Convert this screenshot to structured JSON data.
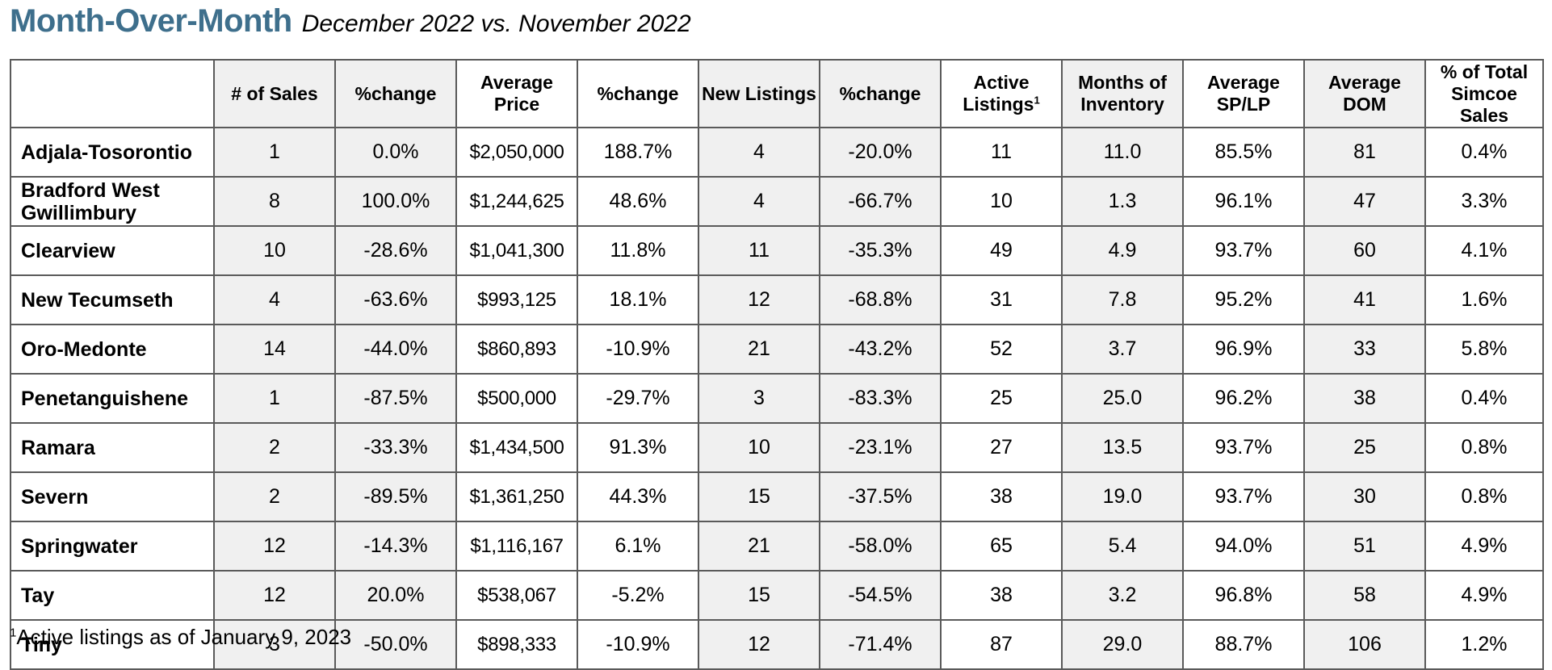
{
  "title": "Month-Over-Month",
  "subtitle": "December 2022 vs. November 2022",
  "colors": {
    "title": "#3e6f8c",
    "shaded_column": "#f0f0f0",
    "border": "#5a5a5a"
  },
  "table": {
    "headers": [
      "",
      "# of Sales",
      "%change",
      "Average Price",
      "%change",
      "New Listings",
      "%change",
      "Active Listings",
      "Months of Inventory",
      "Average SP/LP",
      "Average DOM",
      "% of Total Simcoe Sales"
    ],
    "active_listings_footnote_mark": "1",
    "rows": [
      [
        "Adjala-Tosorontio",
        "1",
        "0.0%",
        "$2,050,000",
        "188.7%",
        "4",
        "-20.0%",
        "11",
        "11.0",
        "85.5%",
        "81",
        "0.4%"
      ],
      [
        "Bradford West Gwillimbury",
        "8",
        "100.0%",
        "$1,244,625",
        "48.6%",
        "4",
        "-66.7%",
        "10",
        "1.3",
        "96.1%",
        "47",
        "3.3%"
      ],
      [
        "Clearview",
        "10",
        "-28.6%",
        "$1,041,300",
        "11.8%",
        "11",
        "-35.3%",
        "49",
        "4.9",
        "93.7%",
        "60",
        "4.1%"
      ],
      [
        "New Tecumseth",
        "4",
        "-63.6%",
        "$993,125",
        "18.1%",
        "12",
        "-68.8%",
        "31",
        "7.8",
        "95.2%",
        "41",
        "1.6%"
      ],
      [
        "Oro-Medonte",
        "14",
        "-44.0%",
        "$860,893",
        "-10.9%",
        "21",
        "-43.2%",
        "52",
        "3.7",
        "96.9%",
        "33",
        "5.8%"
      ],
      [
        "Penetanguishene",
        "1",
        "-87.5%",
        "$500,000",
        "-29.7%",
        "3",
        "-83.3%",
        "25",
        "25.0",
        "96.2%",
        "38",
        "0.4%"
      ],
      [
        "Ramara",
        "2",
        "-33.3%",
        "$1,434,500",
        "91.3%",
        "10",
        "-23.1%",
        "27",
        "13.5",
        "93.7%",
        "25",
        "0.8%"
      ],
      [
        "Severn",
        "2",
        "-89.5%",
        "$1,361,250",
        "44.3%",
        "15",
        "-37.5%",
        "38",
        "19.0",
        "93.7%",
        "30",
        "0.8%"
      ],
      [
        "Springwater",
        "12",
        "-14.3%",
        "$1,116,167",
        "6.1%",
        "21",
        "-58.0%",
        "65",
        "5.4",
        "94.0%",
        "51",
        "4.9%"
      ],
      [
        "Tay",
        "12",
        "20.0%",
        "$538,067",
        "-5.2%",
        "15",
        "-54.5%",
        "38",
        "3.2",
        "96.8%",
        "58",
        "4.9%"
      ],
      [
        "Tiny",
        "3",
        "-50.0%",
        "$898,333",
        "-10.9%",
        "12",
        "-71.4%",
        "87",
        "29.0",
        "88.7%",
        "106",
        "1.2%"
      ]
    ]
  },
  "footnote": {
    "mark": "1",
    "text": "Active listings as of January 9, 2023"
  }
}
